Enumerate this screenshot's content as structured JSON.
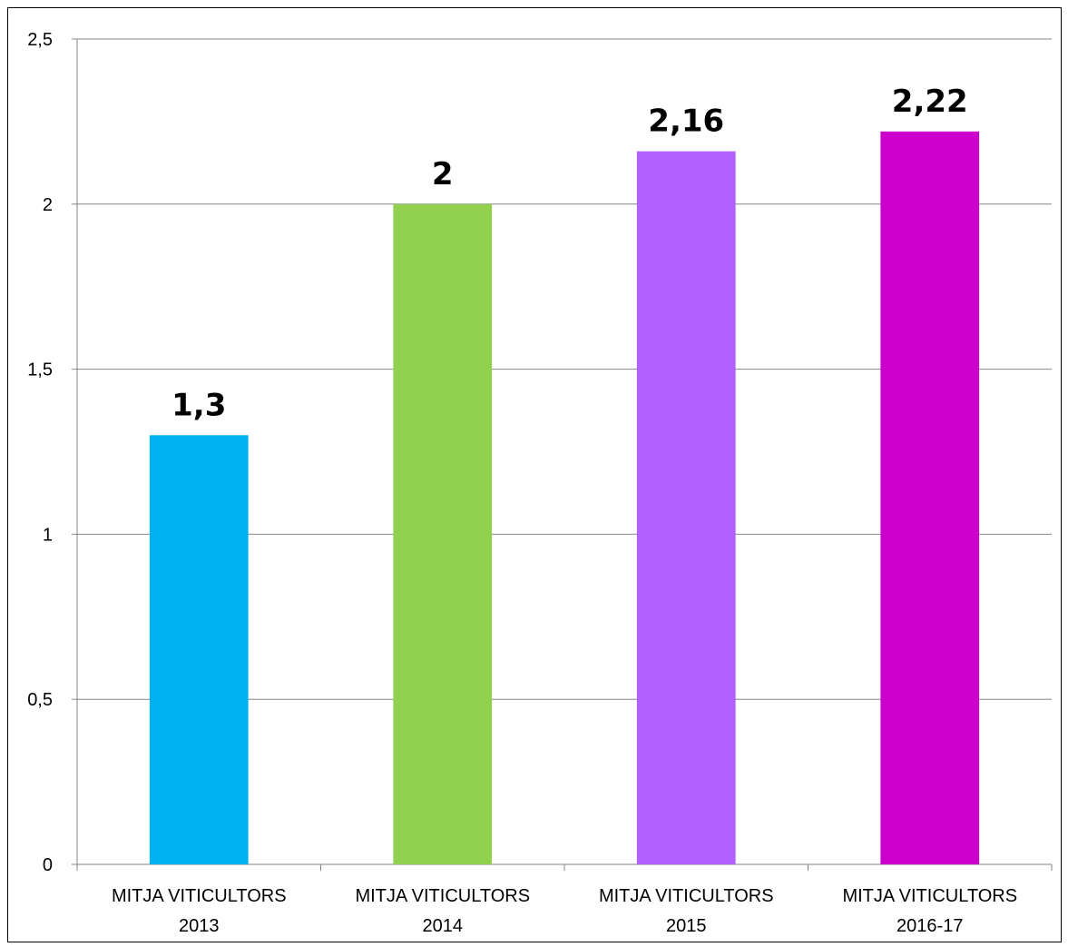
{
  "chart_data": {
    "type": "bar",
    "title": "",
    "xlabel": "",
    "ylabel": "",
    "ylim": [
      0,
      2.5
    ],
    "yticks": [
      0,
      0.5,
      1,
      1.5,
      2,
      2.5
    ],
    "ytick_labels": [
      "0",
      "0,5",
      "1",
      "1,5",
      "2",
      "2,5"
    ],
    "grid": true,
    "legend": "none",
    "categories": [
      [
        "MITJA VITICULTORS",
        "2013"
      ],
      [
        "MITJA VITICULTORS",
        "2014"
      ],
      [
        "MITJA VITICULTORS",
        "2015"
      ],
      [
        "MITJA VITICULTORS",
        "2016-17"
      ]
    ],
    "values": [
      1.3,
      2,
      2.16,
      2.22
    ],
    "value_labels": [
      "1,3",
      "2",
      "2,16",
      "2,22"
    ],
    "colors": [
      "#00b0f0",
      "#92d050",
      "#b061ff",
      "#cc00cc"
    ]
  }
}
